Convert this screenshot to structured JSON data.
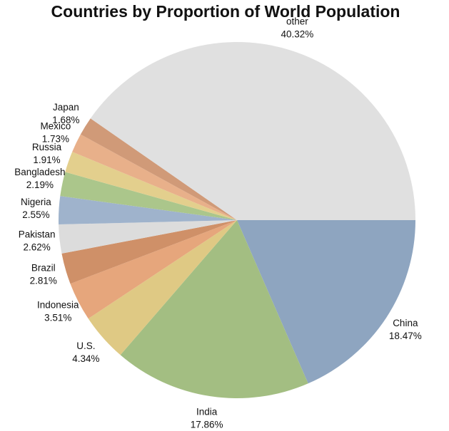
{
  "chart_data": {
    "type": "pie",
    "title": "Countries by Proportion of World Population",
    "categories": [
      "China",
      "India",
      "U.S.",
      "Indonesia",
      "Brazil",
      "Pakistan",
      "Nigeria",
      "Bangladesh",
      "Russia",
      "Mexico",
      "Japan",
      "other"
    ],
    "values": [
      18.47,
      17.86,
      4.34,
      3.51,
      2.81,
      2.62,
      2.55,
      2.19,
      1.91,
      1.73,
      1.68,
      40.32
    ],
    "value_labels": [
      "18.47%",
      "17.86%",
      "4.34%",
      "3.51%",
      "2.81%",
      "2.62%",
      "2.55%",
      "2.19%",
      "1.91%",
      "1.73%",
      "1.68%",
      "40.32%"
    ],
    "colors": [
      "#8ea5c0",
      "#a3be82",
      "#dfc984",
      "#e6a67c",
      "#cf9068",
      "#dcdcdc",
      "#9fb3cc",
      "#abc68b",
      "#e3cf8d",
      "#e8b08a",
      "#d09a78",
      "#e0e0e0"
    ]
  }
}
